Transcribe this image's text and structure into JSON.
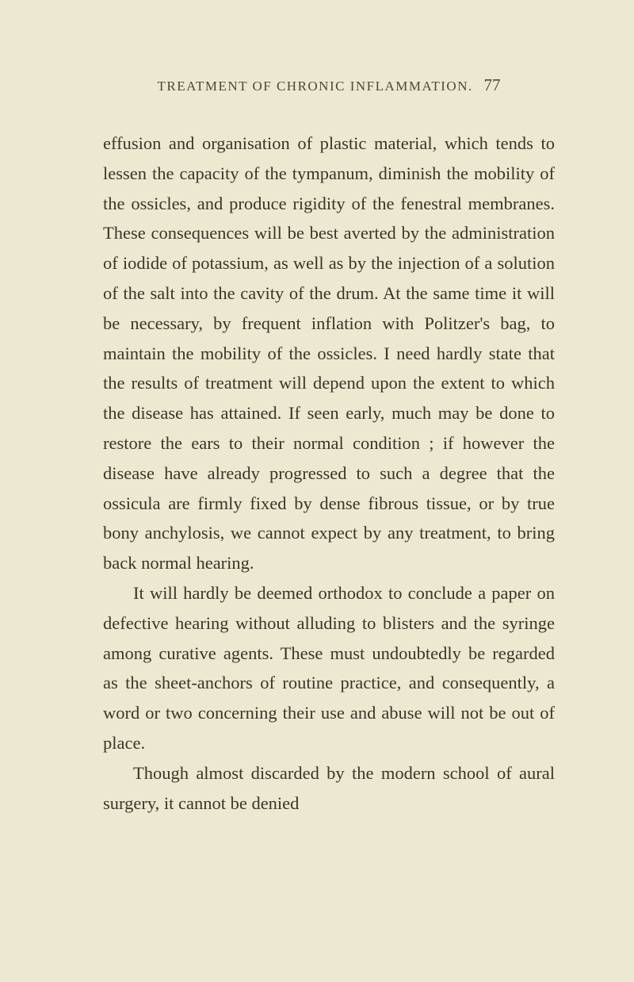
{
  "header": {
    "running_title": "TREATMENT OF CHRONIC INFLAMMATION.",
    "page_number": "77"
  },
  "paragraphs": {
    "p1": "effusion and organisation of plastic material, which tends to lessen the capacity of the tym­panum, diminish the mobility of the ossicles, and produce rigidity of the fenestral membranes. These consequences will be best averted by the administration of iodide of potassium, as well as by the injection of a solution of the salt into the cavity of the drum. At the same time it will be necessary, by frequent inflation with Politzer's bag, to maintain the mobility of the ossicles. I need hardly state that the results of treatment will depend upon the extent to which the disease has attained. If seen early, much may be done to restore the ears to their normal condition ; if however the disease have already progressed to such a degree that the ossicula are firmly fixed by dense fibrous tissue, or by true bony anchylosis, we cannot expect by any treatment, to bring back normal hearing.",
    "p2": "It will hardly be deemed orthodox to con­clude a paper on defective hearing without alluding to blisters and the syringe among curative agents. These must undoubtedly be regarded as the sheet-anchors of routine prac­tice, and consequently, a word or two con­cerning their use and abuse will not be out of place.",
    "p3": "Though almost discarded by the modern school of aural surgery, it cannot be denied"
  },
  "styling": {
    "background_color": "#ede8d0",
    "text_color": "#3a3628",
    "header_color": "#4a4a3a",
    "body_font_size": 22.5,
    "header_font_size": 17,
    "page_number_font_size": 21,
    "line_height": 1.68,
    "header_letter_spacing": 1.5
  }
}
